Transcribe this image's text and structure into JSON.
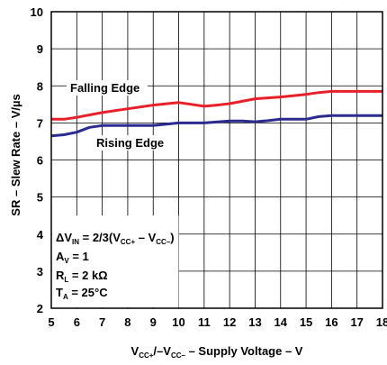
{
  "chart_data": {
    "type": "line",
    "xlabel_parts": [
      "V",
      "CC+",
      "/–V",
      "CC–",
      " – Supply Voltage – V"
    ],
    "ylabel": "SR – Slew Rate – V/µs",
    "xlim": [
      5,
      18
    ],
    "ylim": [
      2,
      10
    ],
    "x_ticks": [
      "5",
      "6",
      "7",
      "8",
      "9",
      "10",
      "11",
      "12",
      "13",
      "14",
      "15",
      "16",
      "17",
      "18"
    ],
    "y_ticks": [
      "2",
      "3",
      "4",
      "5",
      "6",
      "7",
      "8",
      "9",
      "10"
    ],
    "grid": true,
    "series": [
      {
        "name": "Falling Edge",
        "color": "#e8202a",
        "x": [
          5,
          5.5,
          6,
          7,
          8,
          9,
          10,
          10.5,
          11,
          11.5,
          12,
          13,
          14,
          15,
          15.5,
          16,
          17,
          18
        ],
        "y": [
          7.1,
          7.1,
          7.15,
          7.28,
          7.38,
          7.48,
          7.55,
          7.5,
          7.45,
          7.48,
          7.52,
          7.65,
          7.7,
          7.77,
          7.82,
          7.85,
          7.85,
          7.85
        ]
      },
      {
        "name": "Rising Edge",
        "color": "#2b2b8f",
        "x": [
          5,
          5.5,
          6,
          6.5,
          7,
          8,
          9,
          10,
          11,
          12,
          12.5,
          13,
          13.5,
          14,
          15,
          15.5,
          16,
          17,
          18
        ],
        "y": [
          6.65,
          6.68,
          6.75,
          6.88,
          6.93,
          6.93,
          6.93,
          7.0,
          7.0,
          7.05,
          7.05,
          7.03,
          7.06,
          7.1,
          7.1,
          7.17,
          7.2,
          7.2,
          7.2
        ]
      }
    ],
    "conditions": [
      [
        {
          "t": "ΔV"
        },
        {
          "t": "IN",
          "sub": true
        },
        {
          "t": " = 2/3(V"
        },
        {
          "t": "CC+",
          "sub": true
        },
        {
          "t": " – V"
        },
        {
          "t": "CC–",
          "sub": true
        },
        {
          "t": ")"
        }
      ],
      [
        {
          "t": "A"
        },
        {
          "t": "V",
          "sub": true
        },
        {
          "t": " = 1"
        }
      ],
      [
        {
          "t": "R"
        },
        {
          "t": "L",
          "sub": true
        },
        {
          "t": " = 2 kΩ"
        }
      ],
      [
        {
          "t": "T"
        },
        {
          "t": "A",
          "sub": true
        },
        {
          "t": " = 25°C"
        }
      ]
    ]
  }
}
